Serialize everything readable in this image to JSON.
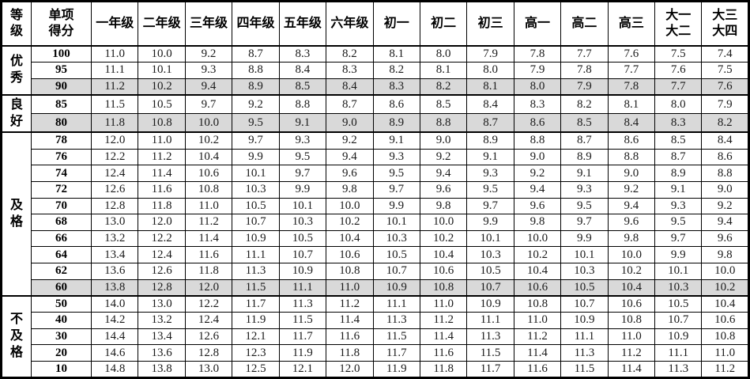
{
  "table": {
    "colors": {
      "shaded_row_bg": "#d9d9d9",
      "border": "#000000",
      "background": "#ffffff"
    },
    "header": {
      "col_grade": "等\n级",
      "col_score": "单项\n得分",
      "grade_columns": [
        "一年级",
        "二年级",
        "三年级",
        "四年级",
        "五年级",
        "六年级",
        "初一",
        "初二",
        "初三",
        "高一",
        "高二",
        "高三",
        "大一\n大二",
        "大三\n大四"
      ]
    },
    "groups": [
      {
        "label": "优秀",
        "rows": [
          {
            "score": "100",
            "shaded": false,
            "values": [
              "11.0",
              "10.0",
              "9.2",
              "8.7",
              "8.3",
              "8.2",
              "8.1",
              "8.0",
              "7.9",
              "7.8",
              "7.7",
              "7.6",
              "7.5",
              "7.4"
            ]
          },
          {
            "score": "95",
            "shaded": false,
            "values": [
              "11.1",
              "10.1",
              "9.3",
              "8.8",
              "8.4",
              "8.3",
              "8.2",
              "8.1",
              "8.0",
              "7.9",
              "7.8",
              "7.7",
              "7.6",
              "7.5"
            ]
          },
          {
            "score": "90",
            "shaded": true,
            "values": [
              "11.2",
              "10.2",
              "9.4",
              "8.9",
              "8.5",
              "8.4",
              "8.3",
              "8.2",
              "8.1",
              "8.0",
              "7.9",
              "7.8",
              "7.7",
              "7.6"
            ]
          }
        ]
      },
      {
        "label": "良好",
        "rows": [
          {
            "score": "85",
            "shaded": false,
            "values": [
              "11.5",
              "10.5",
              "9.7",
              "9.2",
              "8.8",
              "8.7",
              "8.6",
              "8.5",
              "8.4",
              "8.3",
              "8.2",
              "8.1",
              "8.0",
              "7.9"
            ]
          },
          {
            "score": "80",
            "shaded": true,
            "values": [
              "11.8",
              "10.8",
              "10.0",
              "9.5",
              "9.1",
              "9.0",
              "8.9",
              "8.8",
              "8.7",
              "8.6",
              "8.5",
              "8.4",
              "8.3",
              "8.2"
            ]
          }
        ]
      },
      {
        "label": "及格",
        "rows": [
          {
            "score": "78",
            "shaded": false,
            "values": [
              "12.0",
              "11.0",
              "10.2",
              "9.7",
              "9.3",
              "9.2",
              "9.1",
              "9.0",
              "8.9",
              "8.8",
              "8.7",
              "8.6",
              "8.5",
              "8.4"
            ]
          },
          {
            "score": "76",
            "shaded": false,
            "values": [
              "12.2",
              "11.2",
              "10.4",
              "9.9",
              "9.5",
              "9.4",
              "9.3",
              "9.2",
              "9.1",
              "9.0",
              "8.9",
              "8.8",
              "8.7",
              "8.6"
            ]
          },
          {
            "score": "74",
            "shaded": false,
            "values": [
              "12.4",
              "11.4",
              "10.6",
              "10.1",
              "9.7",
              "9.6",
              "9.5",
              "9.4",
              "9.3",
              "9.2",
              "9.1",
              "9.0",
              "8.9",
              "8.8"
            ]
          },
          {
            "score": "72",
            "shaded": false,
            "values": [
              "12.6",
              "11.6",
              "10.8",
              "10.3",
              "9.9",
              "9.8",
              "9.7",
              "9.6",
              "9.5",
              "9.4",
              "9.3",
              "9.2",
              "9.1",
              "9.0"
            ]
          },
          {
            "score": "70",
            "shaded": false,
            "values": [
              "12.8",
              "11.8",
              "11.0",
              "10.5",
              "10.1",
              "10.0",
              "9.9",
              "9.8",
              "9.7",
              "9.6",
              "9.5",
              "9.4",
              "9.3",
              "9.2"
            ]
          },
          {
            "score": "68",
            "shaded": false,
            "values": [
              "13.0",
              "12.0",
              "11.2",
              "10.7",
              "10.3",
              "10.2",
              "10.1",
              "10.0",
              "9.9",
              "9.8",
              "9.7",
              "9.6",
              "9.5",
              "9.4"
            ]
          },
          {
            "score": "66",
            "shaded": false,
            "values": [
              "13.2",
              "12.2",
              "11.4",
              "10.9",
              "10.5",
              "10.4",
              "10.3",
              "10.2",
              "10.1",
              "10.0",
              "9.9",
              "9.8",
              "9.7",
              "9.6"
            ]
          },
          {
            "score": "64",
            "shaded": false,
            "values": [
              "13.4",
              "12.4",
              "11.6",
              "11.1",
              "10.7",
              "10.6",
              "10.5",
              "10.4",
              "10.3",
              "10.2",
              "10.1",
              "10.0",
              "9.9",
              "9.8"
            ]
          },
          {
            "score": "62",
            "shaded": false,
            "values": [
              "13.6",
              "12.6",
              "11.8",
              "11.3",
              "10.9",
              "10.8",
              "10.7",
              "10.6",
              "10.5",
              "10.4",
              "10.3",
              "10.2",
              "10.1",
              "10.0"
            ]
          },
          {
            "score": "60",
            "shaded": true,
            "values": [
              "13.8",
              "12.8",
              "12.0",
              "11.5",
              "11.1",
              "11.0",
              "10.9",
              "10.8",
              "10.7",
              "10.6",
              "10.5",
              "10.4",
              "10.3",
              "10.2"
            ]
          }
        ]
      },
      {
        "label": "不及格",
        "rows": [
          {
            "score": "50",
            "shaded": false,
            "values": [
              "14.0",
              "13.0",
              "12.2",
              "11.7",
              "11.3",
              "11.2",
              "11.1",
              "11.0",
              "10.9",
              "10.8",
              "10.7",
              "10.6",
              "10.5",
              "10.4"
            ]
          },
          {
            "score": "40",
            "shaded": false,
            "values": [
              "14.2",
              "13.2",
              "12.4",
              "11.9",
              "11.5",
              "11.4",
              "11.3",
              "11.2",
              "11.1",
              "11.0",
              "10.9",
              "10.8",
              "10.7",
              "10.6"
            ]
          },
          {
            "score": "30",
            "shaded": false,
            "values": [
              "14.4",
              "13.4",
              "12.6",
              "12.1",
              "11.7",
              "11.6",
              "11.5",
              "11.4",
              "11.3",
              "11.2",
              "11.1",
              "11.0",
              "10.9",
              "10.8"
            ]
          },
          {
            "score": "20",
            "shaded": false,
            "values": [
              "14.6",
              "13.6",
              "12.8",
              "12.3",
              "11.9",
              "11.8",
              "11.7",
              "11.6",
              "11.5",
              "11.4",
              "11.3",
              "11.2",
              "11.1",
              "11.0"
            ]
          },
          {
            "score": "10",
            "shaded": false,
            "values": [
              "14.8",
              "13.8",
              "13.0",
              "12.5",
              "12.1",
              "12.0",
              "11.9",
              "11.8",
              "11.7",
              "11.6",
              "11.5",
              "11.4",
              "11.3",
              "11.2"
            ]
          }
        ]
      }
    ]
  }
}
